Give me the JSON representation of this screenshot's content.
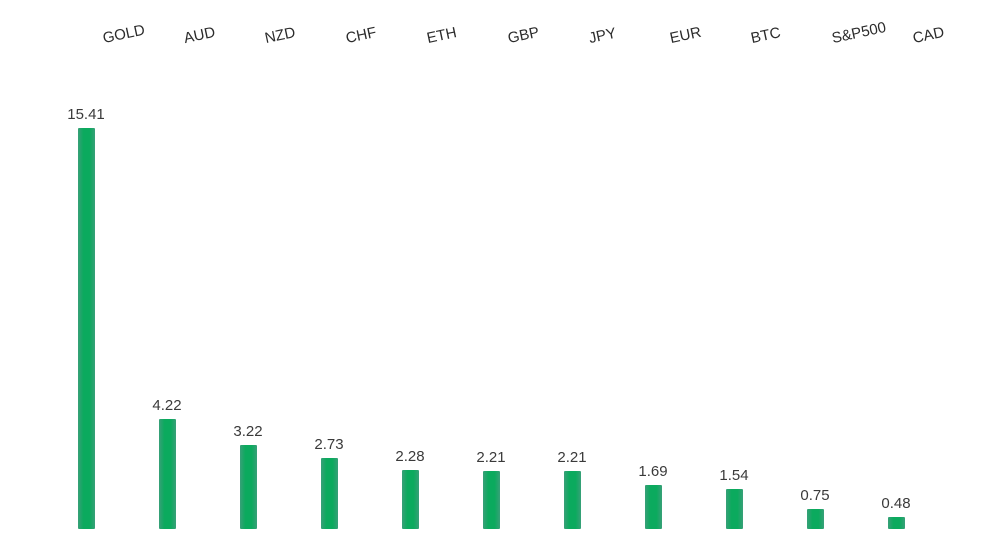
{
  "chart_data": {
    "type": "bar",
    "categories": [
      "GOLD",
      "AUD",
      "NZD",
      "CHF",
      "ETH",
      "GBP",
      "JPY",
      "EUR",
      "BTC",
      "S&P500",
      "CAD"
    ],
    "values": [
      15.41,
      4.22,
      3.22,
      2.73,
      2.28,
      2.21,
      2.21,
      1.69,
      1.54,
      0.75,
      0.48
    ],
    "value_labels": [
      "15.41",
      "4.22",
      "3.22",
      "2.73",
      "2.28",
      "2.21",
      "2.21",
      "1.69",
      "1.54",
      "0.75",
      "0.48"
    ],
    "title": "",
    "xlabel": "",
    "ylabel": "",
    "ylim": [
      0,
      16
    ],
    "grid": false,
    "legend": false,
    "axes_visible": false,
    "category_labels_position": "top",
    "category_label_rotation_deg": -12,
    "bar_color": "#0baa5e",
    "bar_edge_color": "#38a078",
    "value_label_color": "#3a3a3a",
    "category_label_color": "#2b2b2b",
    "background_color": "#ffffff"
  }
}
